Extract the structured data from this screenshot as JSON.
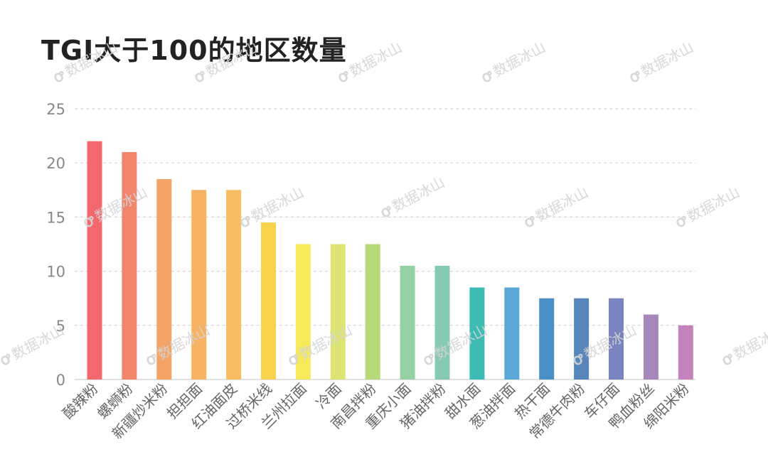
{
  "chart_data": {
    "type": "bar",
    "title": "TGI大于100的地区数量",
    "xlabel": "",
    "ylabel": "",
    "ylim": [
      0,
      25
    ],
    "yticks": [
      0,
      5,
      10,
      15,
      20,
      25
    ],
    "grid": true,
    "categories": [
      "酸辣粉",
      "螺蛳粉",
      "新疆炒米粉",
      "担担面",
      "红油面皮",
      "过桥米线",
      "兰州拉面",
      "冷面",
      "南昌拌粉",
      "重庆小面",
      "猪油拌粉",
      "甜水面",
      "葱油拌面",
      "热干面",
      "常德牛肉粉",
      "车仔面",
      "鸭血粉丝",
      "绵阳米粉"
    ],
    "values": [
      22,
      21,
      18.5,
      17.5,
      17.5,
      14.5,
      12.5,
      12.5,
      12.5,
      10.5,
      10.5,
      8.5,
      8.5,
      7.5,
      7.5,
      7.5,
      6,
      5
    ],
    "colors": [
      "#f5676f",
      "#f1866c",
      "#f3a365",
      "#f7b263",
      "#f8bd60",
      "#f8d44e",
      "#f6ea5b",
      "#dde474",
      "#b6d97a",
      "#94d2a6",
      "#86c9b4",
      "#3ebbb2",
      "#5aa8d8",
      "#4a90c7",
      "#5886bb",
      "#7a85c0",
      "#a687b9",
      "#c583bd"
    ]
  },
  "watermark": {
    "text": "数据冰山",
    "logo": "ꝍ"
  }
}
